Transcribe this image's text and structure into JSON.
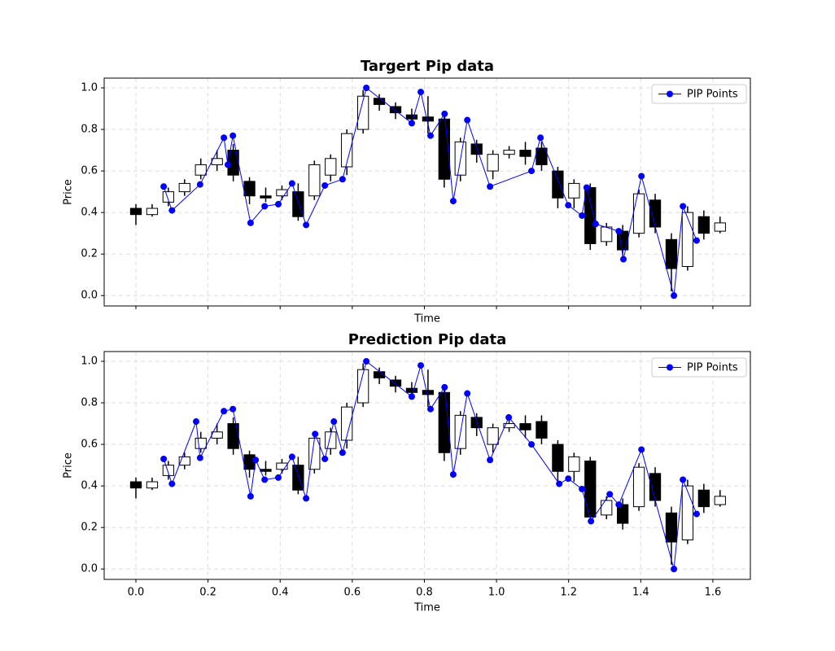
{
  "chart_data": [
    {
      "type": "candlestick",
      "title": "Targert Pip data",
      "xlabel": "Time",
      "ylabel": "Price",
      "x": [
        0,
        0.045,
        0.09,
        0.135,
        0.18,
        0.225,
        0.27,
        0.315,
        0.36,
        0.405,
        0.45,
        0.495,
        0.54,
        0.585,
        0.63,
        0.675,
        0.72,
        0.765,
        0.81,
        0.855,
        0.9,
        0.945,
        0.99,
        1.035,
        1.08,
        1.125,
        1.17,
        1.215,
        1.26,
        1.305,
        1.35,
        1.395,
        1.44,
        1.485,
        1.53,
        1.575,
        1.62
      ],
      "open": [
        0.42,
        0.39,
        0.45,
        0.5,
        0.58,
        0.63,
        0.7,
        0.55,
        0.48,
        0.48,
        0.5,
        0.48,
        0.58,
        0.62,
        0.8,
        0.95,
        0.91,
        0.87,
        0.86,
        0.85,
        0.58,
        0.73,
        0.6,
        0.68,
        0.7,
        0.71,
        0.6,
        0.47,
        0.52,
        0.26,
        0.31,
        0.3,
        0.46,
        0.27,
        0.14,
        0.38,
        0.31
      ],
      "close": [
        0.39,
        0.42,
        0.5,
        0.54,
        0.63,
        0.66,
        0.58,
        0.48,
        0.47,
        0.51,
        0.38,
        0.63,
        0.66,
        0.78,
        0.96,
        0.92,
        0.88,
        0.85,
        0.84,
        0.56,
        0.74,
        0.68,
        0.68,
        0.7,
        0.67,
        0.63,
        0.47,
        0.54,
        0.25,
        0.33,
        0.22,
        0.49,
        0.33,
        0.13,
        0.4,
        0.3,
        0.35
      ],
      "high": [
        0.44,
        0.44,
        0.52,
        0.56,
        0.66,
        0.7,
        0.73,
        0.57,
        0.52,
        0.53,
        0.54,
        0.65,
        0.68,
        0.8,
        0.99,
        0.97,
        0.93,
        0.9,
        0.96,
        0.88,
        0.76,
        0.75,
        0.7,
        0.72,
        0.74,
        0.74,
        0.62,
        0.56,
        0.54,
        0.35,
        0.34,
        0.51,
        0.49,
        0.3,
        0.43,
        0.41,
        0.38
      ],
      "low": [
        0.34,
        0.38,
        0.43,
        0.48,
        0.56,
        0.6,
        0.55,
        0.44,
        0.45,
        0.46,
        0.36,
        0.46,
        0.55,
        0.58,
        0.78,
        0.89,
        0.85,
        0.83,
        0.78,
        0.52,
        0.55,
        0.64,
        0.56,
        0.66,
        0.63,
        0.6,
        0.42,
        0.42,
        0.22,
        0.24,
        0.19,
        0.28,
        0.3,
        0.02,
        0.12,
        0.27,
        0.3
      ],
      "up_color": "#ffffff",
      "down_color": "#000000",
      "edge_color": "#000000",
      "series": [
        {
          "name": "PIP Points",
          "color": "#0000ff",
          "x": [
            0.077,
            0.1,
            0.178,
            0.244,
            0.255,
            0.269,
            0.318,
            0.357,
            0.395,
            0.433,
            0.472,
            0.524,
            0.573,
            0.639,
            0.765,
            0.79,
            0.817,
            0.856,
            0.88,
            0.919,
            0.982,
            1.097,
            1.122,
            1.199,
            1.237,
            1.25,
            1.275,
            1.339,
            1.352,
            1.402,
            1.492,
            1.517,
            1.555
          ],
          "values": [
            0.525,
            0.41,
            0.535,
            0.76,
            0.63,
            0.77,
            0.35,
            0.43,
            0.44,
            0.54,
            0.34,
            0.53,
            0.56,
            1.0,
            0.83,
            0.98,
            0.77,
            0.875,
            0.455,
            0.845,
            0.525,
            0.6,
            0.76,
            0.435,
            0.385,
            0.52,
            0.345,
            0.31,
            0.175,
            0.575,
            0.0,
            0.43,
            0.265
          ]
        }
      ],
      "xlim": [
        -0.088,
        1.704
      ],
      "ylim": [
        -0.05,
        1.047
      ],
      "xticks": [
        0,
        0.2,
        0.4,
        0.6,
        0.8,
        1,
        1.2,
        1.4,
        1.6
      ],
      "show_xtick_labels": false,
      "yticks": [
        {
          "value": 0,
          "label": "0.0"
        },
        {
          "value": 0.2,
          "label": "0.2"
        },
        {
          "value": 0.4,
          "label": "0.4"
        },
        {
          "value": 0.6,
          "label": "0.6"
        },
        {
          "value": 0.8,
          "label": "0.8"
        },
        {
          "value": 1,
          "label": "1.0"
        }
      ],
      "grid": true,
      "legend": "upper right"
    },
    {
      "type": "candlestick",
      "title": "Prediction Pip data",
      "xlabel": "Time",
      "ylabel": "Price",
      "x": [
        0,
        0.045,
        0.09,
        0.135,
        0.18,
        0.225,
        0.27,
        0.315,
        0.36,
        0.405,
        0.45,
        0.495,
        0.54,
        0.585,
        0.63,
        0.675,
        0.72,
        0.765,
        0.81,
        0.855,
        0.9,
        0.945,
        0.99,
        1.035,
        1.08,
        1.125,
        1.17,
        1.215,
        1.26,
        1.305,
        1.35,
        1.395,
        1.44,
        1.485,
        1.53,
        1.575,
        1.62
      ],
      "open": [
        0.42,
        0.39,
        0.45,
        0.5,
        0.58,
        0.63,
        0.7,
        0.55,
        0.48,
        0.48,
        0.5,
        0.48,
        0.58,
        0.62,
        0.8,
        0.95,
        0.91,
        0.87,
        0.86,
        0.85,
        0.58,
        0.73,
        0.6,
        0.68,
        0.7,
        0.71,
        0.6,
        0.47,
        0.52,
        0.26,
        0.31,
        0.3,
        0.46,
        0.27,
        0.14,
        0.38,
        0.31
      ],
      "close": [
        0.39,
        0.42,
        0.5,
        0.54,
        0.63,
        0.66,
        0.58,
        0.48,
        0.47,
        0.51,
        0.38,
        0.63,
        0.66,
        0.78,
        0.96,
        0.92,
        0.88,
        0.85,
        0.84,
        0.56,
        0.74,
        0.68,
        0.68,
        0.7,
        0.67,
        0.63,
        0.47,
        0.54,
        0.25,
        0.33,
        0.22,
        0.49,
        0.33,
        0.13,
        0.4,
        0.3,
        0.35
      ],
      "high": [
        0.44,
        0.44,
        0.52,
        0.56,
        0.66,
        0.7,
        0.73,
        0.57,
        0.52,
        0.53,
        0.54,
        0.65,
        0.68,
        0.8,
        0.99,
        0.97,
        0.93,
        0.9,
        0.96,
        0.88,
        0.76,
        0.75,
        0.7,
        0.72,
        0.74,
        0.74,
        0.62,
        0.56,
        0.54,
        0.35,
        0.34,
        0.51,
        0.49,
        0.3,
        0.43,
        0.41,
        0.38
      ],
      "low": [
        0.34,
        0.38,
        0.43,
        0.48,
        0.56,
        0.6,
        0.55,
        0.44,
        0.45,
        0.46,
        0.36,
        0.46,
        0.55,
        0.58,
        0.78,
        0.89,
        0.85,
        0.83,
        0.78,
        0.52,
        0.55,
        0.64,
        0.56,
        0.66,
        0.63,
        0.6,
        0.42,
        0.42,
        0.22,
        0.24,
        0.19,
        0.28,
        0.3,
        0.02,
        0.12,
        0.27,
        0.3
      ],
      "up_color": "#ffffff",
      "down_color": "#000000",
      "edge_color": "#000000",
      "series": [
        {
          "name": "PIP Points",
          "color": "#0000ff",
          "x": [
            0.077,
            0.1,
            0.167,
            0.178,
            0.244,
            0.269,
            0.318,
            0.332,
            0.357,
            0.395,
            0.433,
            0.472,
            0.497,
            0.524,
            0.549,
            0.573,
            0.639,
            0.765,
            0.79,
            0.817,
            0.856,
            0.88,
            0.919,
            0.982,
            1.034,
            1.097,
            1.174,
            1.199,
            1.237,
            1.262,
            1.314,
            1.339,
            1.402,
            1.492,
            1.517,
            1.555
          ],
          "values": [
            0.53,
            0.41,
            0.71,
            0.535,
            0.76,
            0.77,
            0.35,
            0.525,
            0.43,
            0.44,
            0.54,
            0.34,
            0.65,
            0.53,
            0.71,
            0.56,
            1.0,
            0.83,
            0.98,
            0.77,
            0.875,
            0.455,
            0.845,
            0.525,
            0.73,
            0.6,
            0.41,
            0.435,
            0.385,
            0.23,
            0.36,
            0.31,
            0.575,
            0.0,
            0.43,
            0.265
          ]
        }
      ],
      "xlim": [
        -0.088,
        1.704
      ],
      "ylim": [
        -0.05,
        1.047
      ],
      "xticks": [
        {
          "value": 0,
          "label": "0.0"
        },
        {
          "value": 0.2,
          "label": "0.2"
        },
        {
          "value": 0.4,
          "label": "0.4"
        },
        {
          "value": 0.6,
          "label": "0.6"
        },
        {
          "value": 0.8,
          "label": "0.8"
        },
        {
          "value": 1,
          "label": "1.0"
        },
        {
          "value": 1.2,
          "label": "1.2"
        },
        {
          "value": 1.4,
          "label": "1.4"
        },
        {
          "value": 1.6,
          "label": "1.6"
        }
      ],
      "show_xtick_labels": true,
      "yticks": [
        {
          "value": 0,
          "label": "0.0"
        },
        {
          "value": 0.2,
          "label": "0.2"
        },
        {
          "value": 0.4,
          "label": "0.4"
        },
        {
          "value": 0.6,
          "label": "0.6"
        },
        {
          "value": 0.8,
          "label": "0.8"
        },
        {
          "value": 1,
          "label": "1.0"
        }
      ],
      "grid": true,
      "legend": "upper right"
    }
  ]
}
